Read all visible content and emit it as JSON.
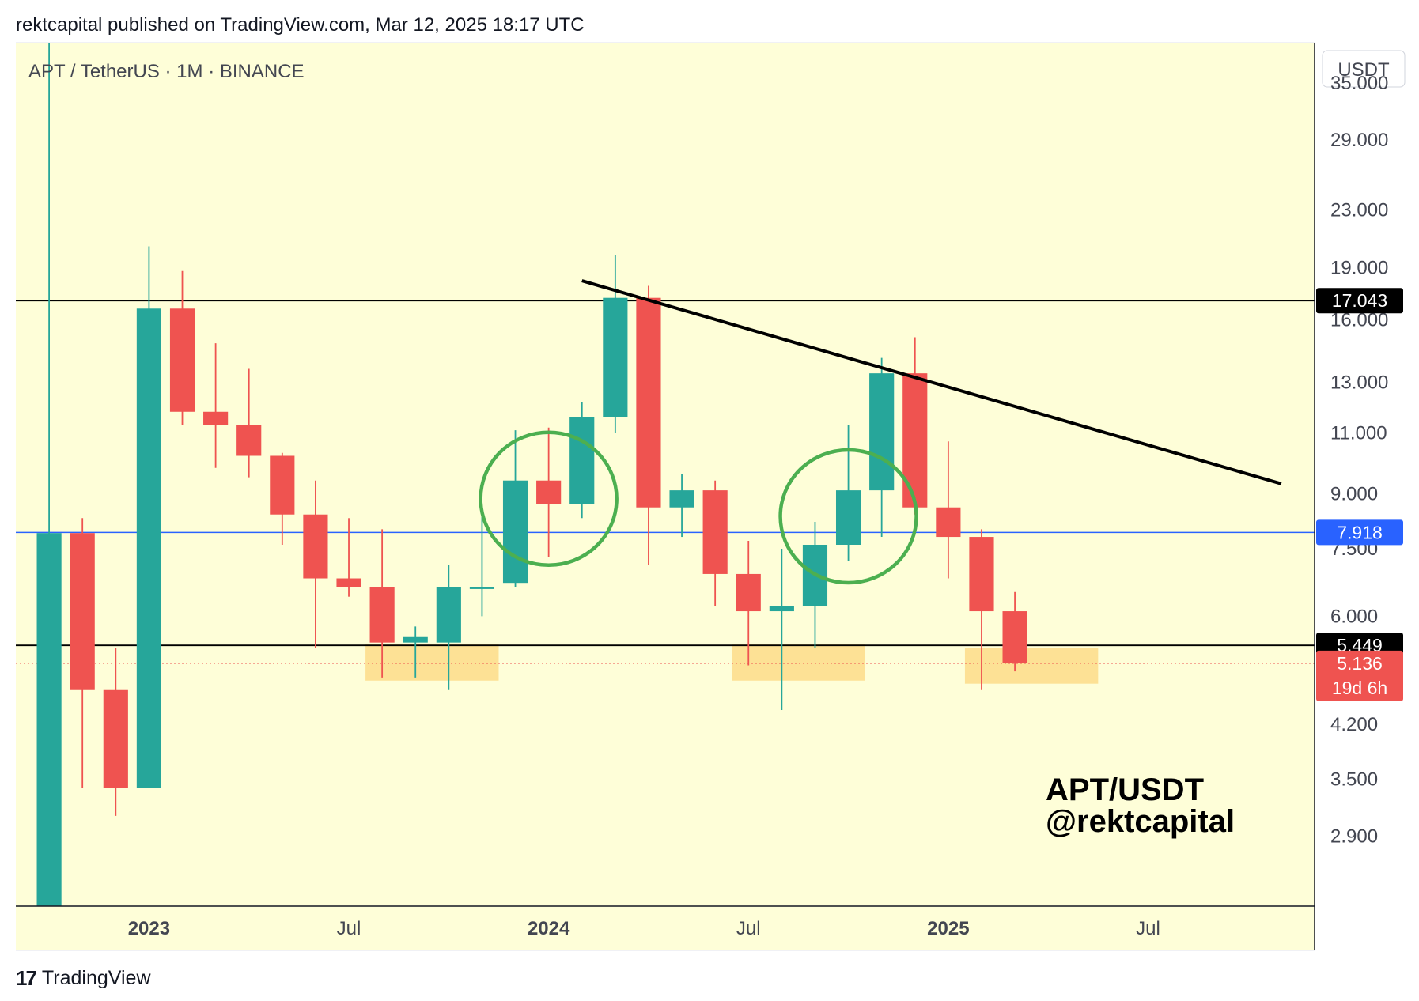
{
  "header": {
    "published": "rektcapital published on TradingView.com, Mar 12, 2025 18:17 UTC"
  },
  "footer": {
    "brand": "TradingView",
    "logo_glyph": "17"
  },
  "colors": {
    "background": "#fefed8",
    "up": "#26a69a",
    "down": "#ef5350",
    "support_zone": "#fddc8a",
    "blue_line": "#2962ff",
    "circle": "#4caf50",
    "trendline": "#000000"
  },
  "chart_data": {
    "type": "candlestick",
    "symbol_label": "APT / TetherUS · 1M · BINANCE",
    "currency_label": "USDT",
    "interval": "1M",
    "y_scale": "log",
    "ylim": [
      2.3,
      40
    ],
    "xlim": [
      "2022-09",
      "2025-12"
    ],
    "y_ticks": [
      "35.000",
      "29.000",
      "23.000",
      "19.000",
      "16.000",
      "13.000",
      "11.000",
      "9.000",
      "7.500",
      "6.000",
      "4.200",
      "3.500",
      "2.900"
    ],
    "x_ticks": [
      {
        "label": "2023",
        "date": "2023-01",
        "bold": true
      },
      {
        "label": "Jul",
        "date": "2023-07",
        "bold": false
      },
      {
        "label": "2024",
        "date": "2024-01",
        "bold": true
      },
      {
        "label": "Jul",
        "date": "2024-07",
        "bold": false
      },
      {
        "label": "2025",
        "date": "2025-01",
        "bold": true
      },
      {
        "label": "Jul",
        "date": "2025-07",
        "bold": false
      }
    ],
    "candles": [
      {
        "date": "2022-10",
        "open": 2.0,
        "high": 100.0,
        "low": 2.0,
        "close": 7.9
      },
      {
        "date": "2022-11",
        "open": 7.9,
        "high": 8.3,
        "low": 3.4,
        "close": 4.7
      },
      {
        "date": "2022-12",
        "open": 4.7,
        "high": 5.4,
        "low": 3.1,
        "close": 3.4
      },
      {
        "date": "2023-01",
        "open": 3.4,
        "high": 20.4,
        "low": 3.4,
        "close": 16.6
      },
      {
        "date": "2023-02",
        "open": 16.6,
        "high": 18.8,
        "low": 11.3,
        "close": 11.8
      },
      {
        "date": "2023-03",
        "open": 11.8,
        "high": 14.8,
        "low": 9.8,
        "close": 11.3
      },
      {
        "date": "2023-04",
        "open": 11.3,
        "high": 13.6,
        "low": 9.5,
        "close": 10.2
      },
      {
        "date": "2023-05",
        "open": 10.2,
        "high": 10.3,
        "low": 7.6,
        "close": 8.4
      },
      {
        "date": "2023-06",
        "open": 8.4,
        "high": 9.4,
        "low": 5.4,
        "close": 6.8
      },
      {
        "date": "2023-07",
        "open": 6.8,
        "high": 8.3,
        "low": 6.4,
        "close": 6.6
      },
      {
        "date": "2023-08",
        "open": 6.6,
        "high": 8.0,
        "low": 4.9,
        "close": 5.5
      },
      {
        "date": "2023-09",
        "open": 5.5,
        "high": 5.8,
        "low": 4.9,
        "close": 5.6
      },
      {
        "date": "2023-10",
        "open": 5.5,
        "high": 7.1,
        "low": 4.7,
        "close": 6.6
      },
      {
        "date": "2023-11",
        "open": 6.6,
        "high": 8.4,
        "low": 6.0,
        "close": 6.6
      },
      {
        "date": "2023-12",
        "open": 6.7,
        "high": 11.1,
        "low": 6.6,
        "close": 9.4
      },
      {
        "date": "2024-01",
        "open": 9.4,
        "high": 11.2,
        "low": 7.3,
        "close": 8.7
      },
      {
        "date": "2024-02",
        "open": 8.7,
        "high": 12.2,
        "low": 8.3,
        "close": 11.6
      },
      {
        "date": "2024-03",
        "open": 11.6,
        "high": 19.8,
        "low": 11.0,
        "close": 17.2
      },
      {
        "date": "2024-04",
        "open": 17.2,
        "high": 17.9,
        "low": 7.1,
        "close": 8.6
      },
      {
        "date": "2024-05",
        "open": 8.6,
        "high": 9.6,
        "low": 7.8,
        "close": 9.1
      },
      {
        "date": "2024-06",
        "open": 9.1,
        "high": 9.4,
        "low": 6.2,
        "close": 6.9
      },
      {
        "date": "2024-07",
        "open": 6.9,
        "high": 7.7,
        "low": 5.1,
        "close": 6.1
      },
      {
        "date": "2024-08",
        "open": 6.1,
        "high": 7.5,
        "low": 4.4,
        "close": 6.2
      },
      {
        "date": "2024-09",
        "open": 6.2,
        "high": 8.2,
        "low": 5.4,
        "close": 7.6
      },
      {
        "date": "2024-10",
        "open": 7.6,
        "high": 11.3,
        "low": 7.2,
        "close": 9.1
      },
      {
        "date": "2024-11",
        "open": 9.1,
        "high": 14.1,
        "low": 7.8,
        "close": 13.4
      },
      {
        "date": "2024-12",
        "open": 13.4,
        "high": 15.1,
        "low": 8.4,
        "close": 8.6
      },
      {
        "date": "2025-01",
        "open": 8.6,
        "high": 10.7,
        "low": 6.8,
        "close": 7.8
      },
      {
        "date": "2025-02",
        "open": 7.8,
        "high": 8.0,
        "low": 4.7,
        "close": 6.1
      },
      {
        "date": "2025-03",
        "open": 6.1,
        "high": 6.5,
        "low": 5.0,
        "close": 5.136
      }
    ],
    "horizontal_lines": [
      {
        "value": 17.043,
        "color": "#000000",
        "label": "17.043",
        "label_bg": "#000000"
      },
      {
        "value": 7.918,
        "color": "#2962ff",
        "label": "7.918",
        "label_bg": "#2962ff"
      },
      {
        "value": 5.449,
        "color": "#000000",
        "label": "5.449",
        "label_bg": "#000000"
      }
    ],
    "current_price": {
      "value": 5.136,
      "label": "5.136",
      "countdown": "19d 6h",
      "color": "#ef5350"
    },
    "trendline": {
      "from": {
        "date": "2024-02",
        "value": 18.2
      },
      "to": {
        "date": "2025-11",
        "value": 9.3
      }
    },
    "circles": [
      {
        "date": "2024-01",
        "value": 8.85
      },
      {
        "date": "2024-10",
        "value": 8.35
      }
    ],
    "support_zones": [
      {
        "from": "2023-08",
        "to": "2023-11",
        "low": 4.85,
        "high": 5.47
      },
      {
        "from": "2024-07",
        "to": "2024-10",
        "low": 4.85,
        "high": 5.47
      },
      {
        "from": "2025-02",
        "to": "2025-05",
        "low": 4.8,
        "high": 5.4
      }
    ],
    "watermark": {
      "line1": "APT/USDT",
      "line2": "@rektcapital"
    }
  }
}
